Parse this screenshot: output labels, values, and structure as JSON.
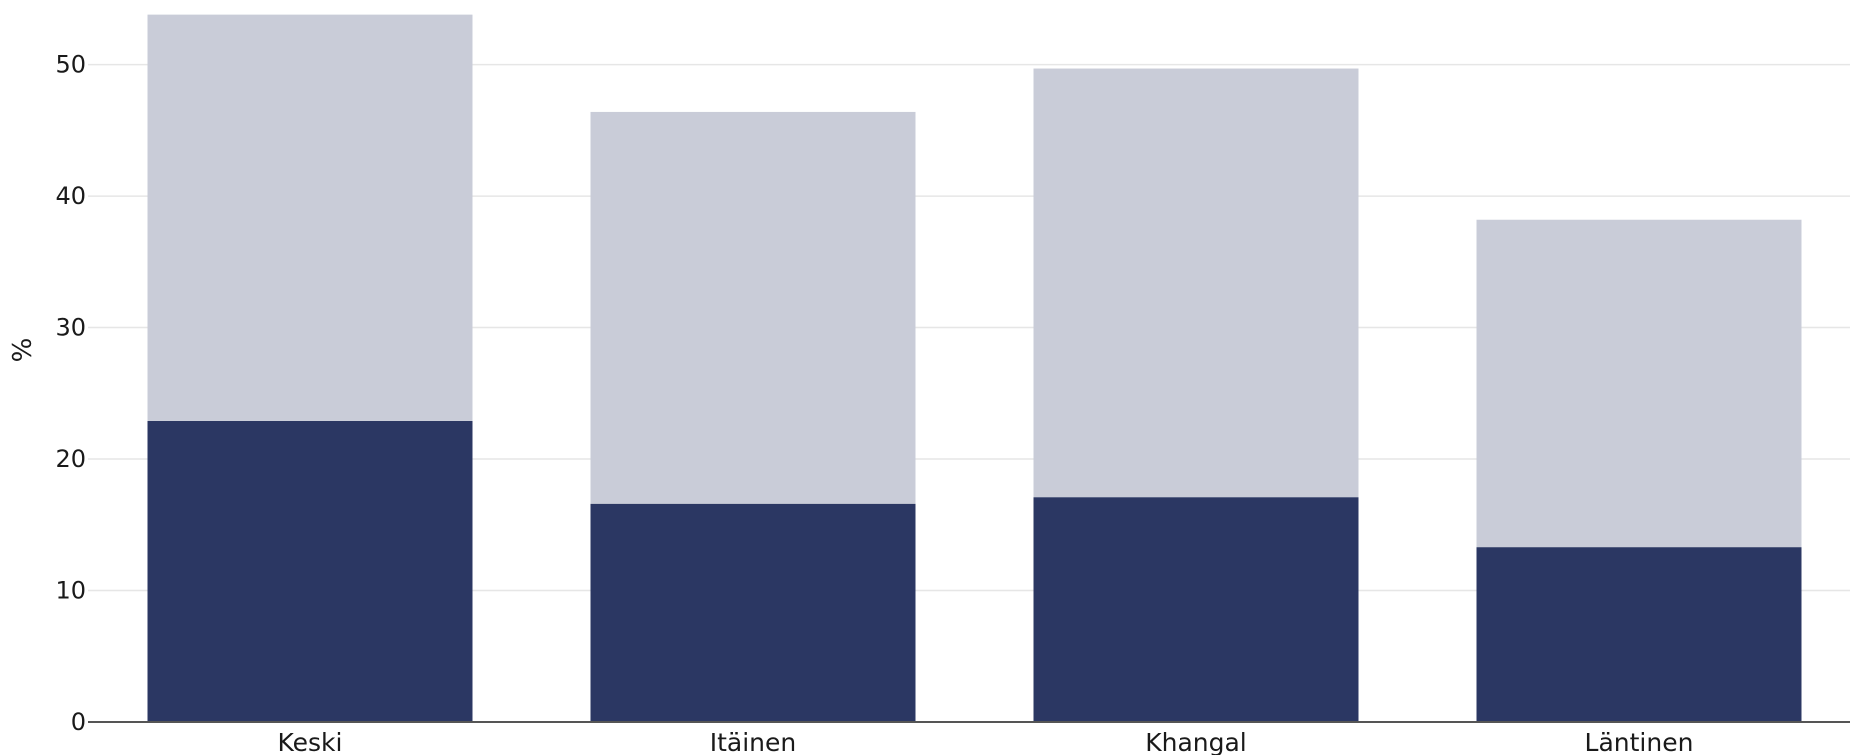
{
  "chart_data": {
    "type": "bar",
    "stacked": true,
    "categories": [
      "Keski",
      "Itäinen",
      "Khangal",
      "Läntinen"
    ],
    "series": [
      {
        "values": [
          22.9,
          16.6,
          17.1,
          13.3
        ]
      },
      {
        "values": [
          30.9,
          29.8,
          32.6,
          24.9
        ]
      }
    ],
    "ylabel": "%",
    "ylim": [
      0,
      54
    ],
    "yticks": [
      0,
      10,
      20,
      30,
      40,
      50
    ],
    "grid": true,
    "colors": [
      "#2b3763",
      "#c9ccd8"
    ]
  }
}
